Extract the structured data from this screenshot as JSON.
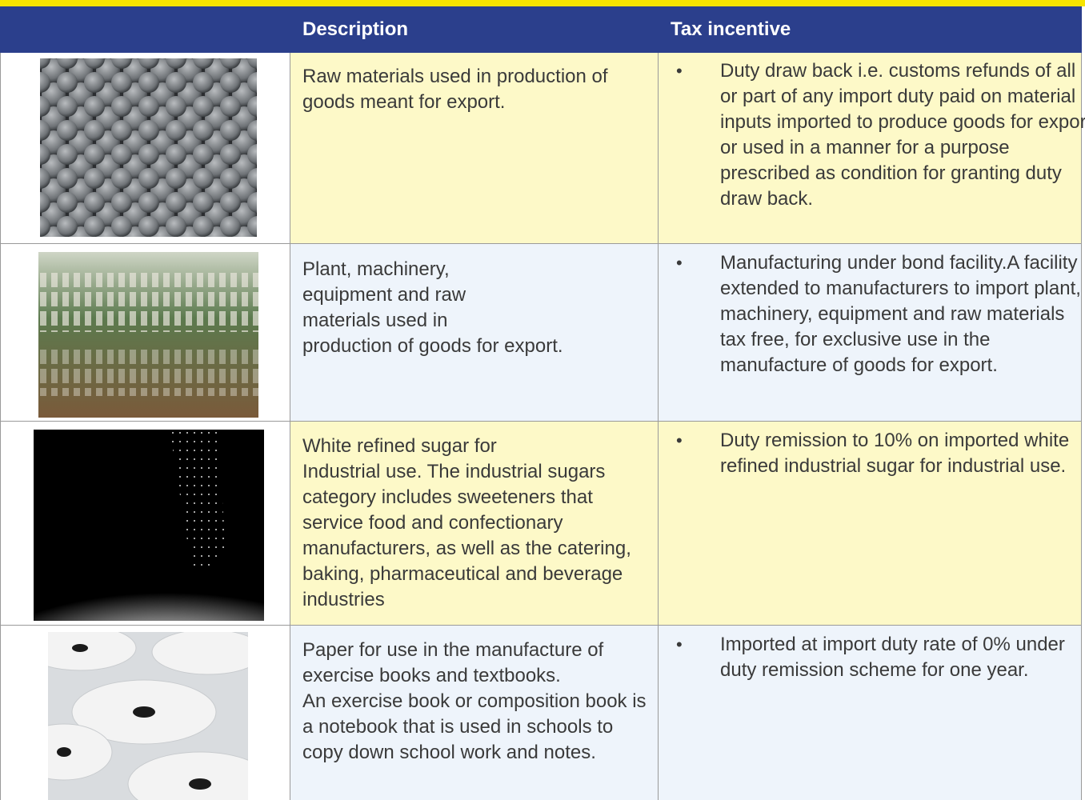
{
  "table": {
    "header": [
      "Description",
      "Tax incentive"
    ],
    "rows": [
      {
        "description": "Raw materials used in production of goods meant for export.",
        "incentive": "Duty draw back i.e. customs refunds of all or part of any import duty paid on material inputs imported to produce goods for export or used in a manner for a purpose prescribed as condition for granting duty draw back."
      },
      {
        "description": "Plant, machinery,\nequipment and raw\nmaterials used in\nproduction of goods for export.",
        "incentive": "Manufacturing under bond facility.A facility extended to manufacturers to import plant, machinery, equipment and raw materials tax free, for exclusive use in the manufacture of goods for export."
      },
      {
        "description": "White refined sugar for\nIndustrial use. The industrial sugars category includes sweeteners that service food and confectionary manufacturers, as well as the catering, baking, pharmaceutical and beverage industries",
        "incentive": "Duty remission to 10% on imported white refined industrial sugar for industrial use."
      },
      {
        "description": "Paper for use in the manufacture of exercise books and textbooks.\nAn exercise book or composition book is a notebook that is used in schools to copy down school work and notes.",
        "incentive": "Imported at import duty rate of 0% under duty remission scheme for one year."
      }
    ]
  }
}
